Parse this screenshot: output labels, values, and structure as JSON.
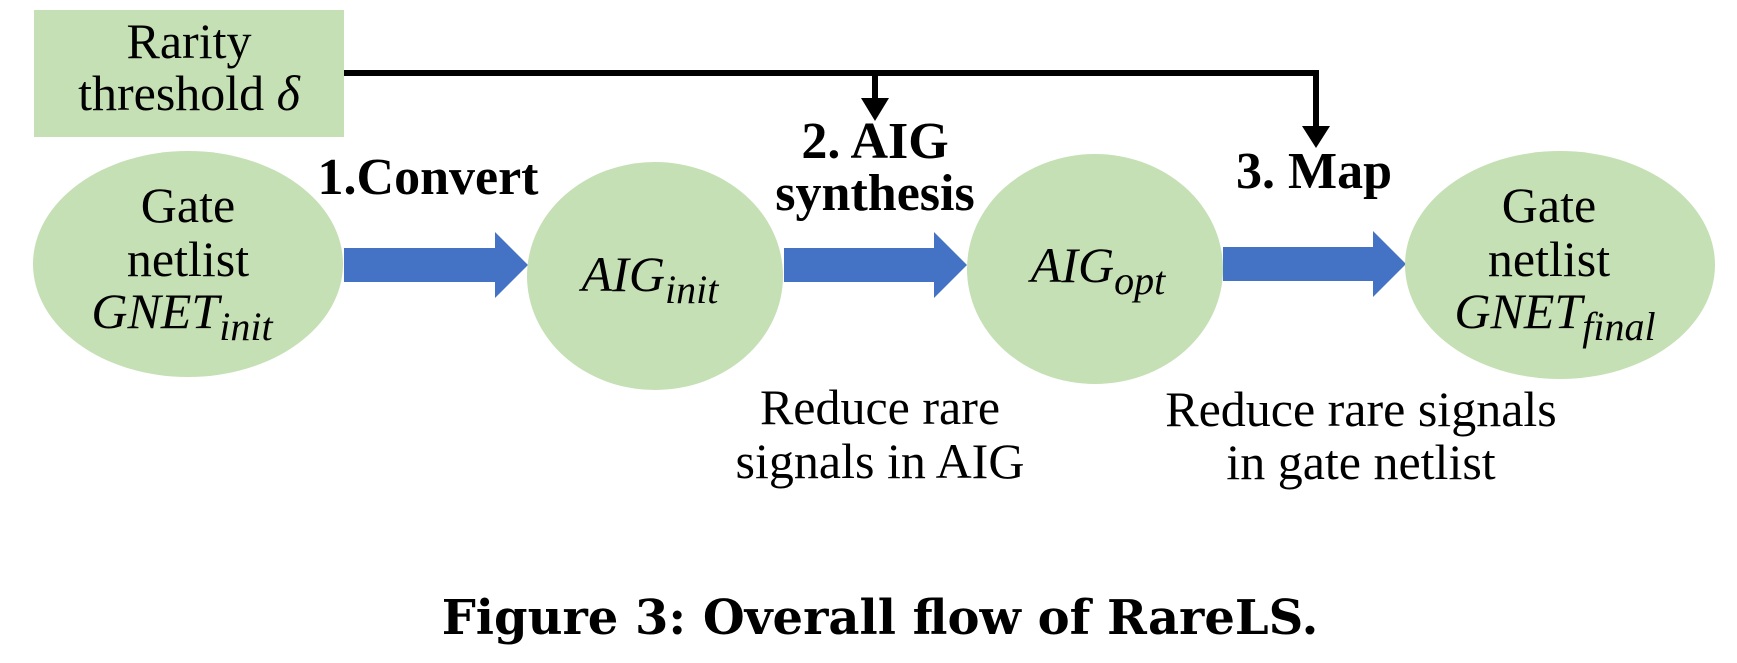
{
  "colors": {
    "node_fill": "#c5e0b4",
    "flow_arrow": "#4472c4",
    "threshold_line": "#000000"
  },
  "threshold_box": {
    "line1": "Rarity",
    "line2": "threshold",
    "symbol": "δ"
  },
  "nodes": [
    {
      "id": "gnet_init",
      "line1": "Gate",
      "line2": "netlist",
      "math_base": "GNET",
      "math_sub": "init"
    },
    {
      "id": "aig_init",
      "math_base": "AIG",
      "math_sub": "init"
    },
    {
      "id": "aig_opt",
      "math_base": "AIG",
      "math_sub": "opt"
    },
    {
      "id": "gnet_final",
      "line1": "Gate",
      "line2": "netlist",
      "math_base": "GNET",
      "math_sub": "final"
    }
  ],
  "steps": [
    {
      "label": "1.Convert"
    },
    {
      "line1": "2. AIG",
      "line2": "synthesis"
    },
    {
      "label": "3. Map"
    }
  ],
  "notes": [
    {
      "line1": "Reduce rare",
      "line2": "signals in AIG"
    },
    {
      "line1": "Reduce rare signals",
      "line2": "in gate netlist"
    }
  ],
  "caption": "Figure 3: Overall flow of RareLS."
}
